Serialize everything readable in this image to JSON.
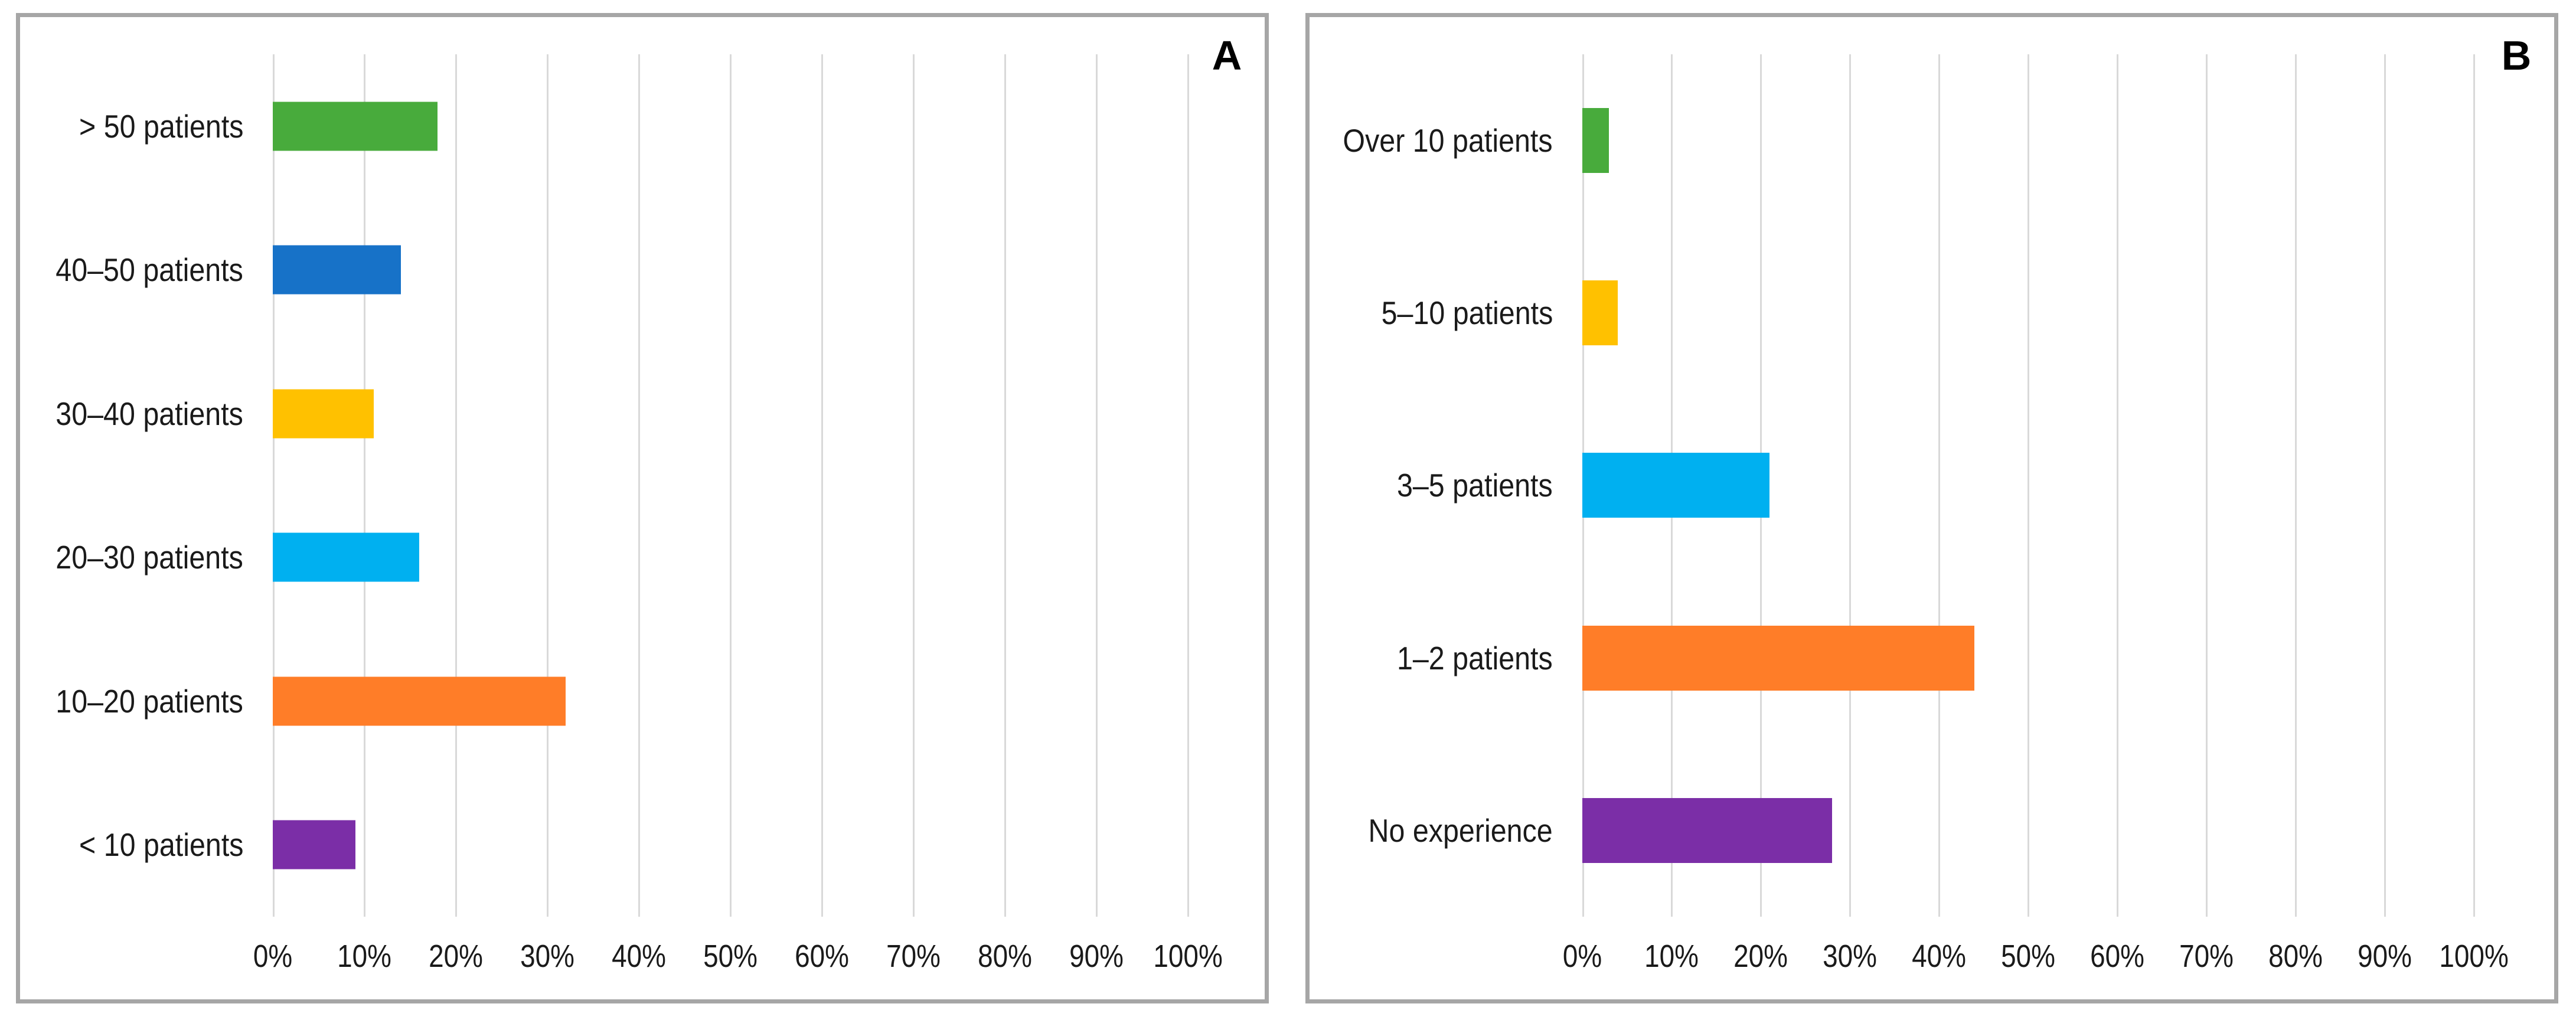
{
  "figure": {
    "background": "#FFFFFF",
    "panel_border_color": "#A6A6A6",
    "gridline_color": "#D9D9D9",
    "text_color": "#1A1A1A"
  },
  "chart_data": [
    {
      "panel_label": "A",
      "type": "bar",
      "orientation": "horizontal",
      "title": "",
      "xlabel": "",
      "ylabel": "",
      "xlim": [
        0,
        100
      ],
      "grid": true,
      "legend": false,
      "categories": [
        "> 50 patients",
        "40–50 patients",
        "30–40 patients",
        "20–30 patients",
        "10–20 patients",
        "< 10 patients"
      ],
      "values": [
        18,
        14,
        11,
        16,
        32,
        9
      ],
      "unit": "%",
      "bar_colors": [
        "#48AB3C",
        "#1772C8",
        "#FFC100",
        "#00B0F0",
        "#FF7D28",
        "#7B2EA7"
      ],
      "x_tick_labels": [
        "0%",
        "10%",
        "20%",
        "30%",
        "40%",
        "50%",
        "60%",
        "70%",
        "80%",
        "90%",
        "100%"
      ]
    },
    {
      "panel_label": "B",
      "type": "bar",
      "orientation": "horizontal",
      "title": "",
      "xlabel": "",
      "ylabel": "",
      "xlim": [
        0,
        100
      ],
      "grid": true,
      "legend": false,
      "categories": [
        "Over 10 patients",
        "5–10 patients",
        "3–5 patients",
        "1–2 patients",
        "No experience"
      ],
      "values": [
        3,
        4,
        21,
        44,
        28
      ],
      "unit": "%",
      "bar_colors": [
        "#48AB3C",
        "#FFC100",
        "#00B0F0",
        "#FF7D28",
        "#7B2EA7"
      ],
      "x_tick_labels": [
        "0%",
        "10%",
        "20%",
        "30%",
        "40%",
        "50%",
        "60%",
        "70%",
        "80%",
        "90%",
        "100%"
      ]
    }
  ]
}
